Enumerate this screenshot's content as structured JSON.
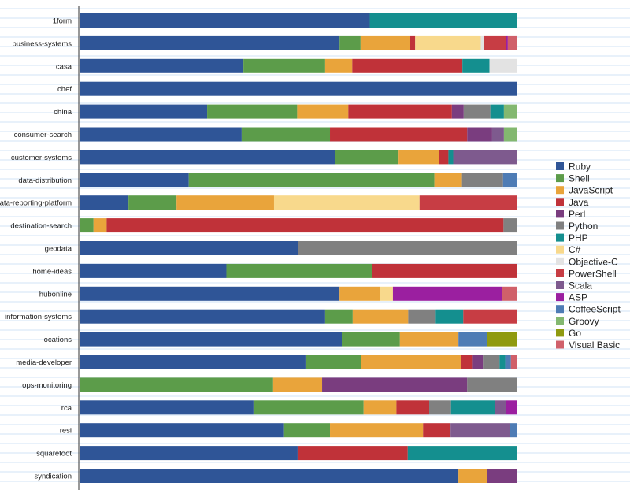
{
  "chart_data": {
    "type": "bar",
    "orientation": "horizontal",
    "stacked": true,
    "normalized": true,
    "title": "",
    "xlabel": "",
    "ylabel": "",
    "xlim": [
      0,
      1
    ],
    "legend_position": "right",
    "categories": [
      "1form",
      "business-systems",
      "casa",
      "chef",
      "china",
      "consumer-search",
      "customer-systems",
      "data-distribution",
      "data-reporting-platform",
      "destination-search",
      "geodata",
      "home-ideas",
      "hubonline",
      "information-systems",
      "locations",
      "media-developer",
      "ops-monitoring",
      "rca",
      "resi",
      "squarefoot",
      "syndication"
    ],
    "series": [
      {
        "name": "Ruby",
        "color": "#2f5597",
        "values": [
          0.664,
          0.595,
          0.375,
          1.0,
          0.292,
          0.371,
          0.584,
          0.25,
          0.112,
          0.0,
          0.5,
          0.336,
          0.595,
          0.562,
          0.6,
          0.517,
          0.0,
          0.398,
          0.468,
          0.499,
          0.867
        ]
      },
      {
        "name": "Shell",
        "color": "#5c9c4a",
        "values": [
          0.0,
          0.048,
          0.187,
          0.0,
          0.206,
          0.202,
          0.146,
          0.562,
          0.11,
          0.032,
          0.0,
          0.333,
          0.0,
          0.063,
          0.133,
          0.128,
          0.443,
          0.252,
          0.105,
          0.0,
          0.0
        ]
      },
      {
        "name": "JavaScript",
        "color": "#e9a43b",
        "values": [
          0.0,
          0.112,
          0.062,
          0.0,
          0.117,
          0.0,
          0.093,
          0.063,
          0.223,
          0.03,
          0.0,
          0.0,
          0.092,
          0.127,
          0.134,
          0.227,
          0.112,
          0.075,
          0.213,
          0.0,
          0.066
        ]
      },
      {
        "name": "Java",
        "color": "#c03239",
        "values": [
          0.0,
          0.013,
          0.252,
          0.0,
          0.237,
          0.314,
          0.021,
          0.0,
          0.0,
          0.908,
          0.0,
          0.331,
          0.0,
          0.0,
          0.0,
          0.026,
          0.0,
          0.075,
          0.063,
          0.252,
          0.0
        ]
      },
      {
        "name": "Perl",
        "color": "#7a3d7f",
        "values": [
          0.0,
          0.0,
          0.0,
          0.0,
          0.027,
          0.057,
          0.0,
          0.0,
          0.0,
          0.0,
          0.0,
          0.0,
          0.0,
          0.0,
          0.0,
          0.025,
          0.332,
          0.0,
          0.0,
          0.0,
          0.067
        ]
      },
      {
        "name": "Python",
        "color": "#808080",
        "values": [
          0.0,
          0.0,
          0.0,
          0.0,
          0.061,
          0.0,
          0.0,
          0.094,
          0.0,
          0.03,
          0.5,
          0.0,
          0.0,
          0.063,
          0.0,
          0.038,
          0.113,
          0.05,
          0.0,
          0.0,
          0.0
        ]
      },
      {
        "name": "PHP",
        "color": "#148f8f",
        "values": [
          0.336,
          0.0,
          0.062,
          0.0,
          0.031,
          0.0,
          0.011,
          0.0,
          0.0,
          0.0,
          0.0,
          0.0,
          0.0,
          0.063,
          0.0,
          0.013,
          0.0,
          0.1,
          0.0,
          0.249,
          0.0
        ]
      },
      {
        "name": "C#",
        "color": "#f8d98c",
        "values": [
          0.0,
          0.15,
          0.0,
          0.0,
          0.0,
          0.0,
          0.0,
          0.0,
          0.333,
          0.0,
          0.0,
          0.0,
          0.03,
          0.0,
          0.0,
          0.0,
          0.0,
          0.0,
          0.0,
          0.0,
          0.0
        ]
      },
      {
        "name": "Objective-C",
        "color": "#e3e3e3",
        "values": [
          0.0,
          0.007,
          0.062,
          0.0,
          0.0,
          0.0,
          0.0,
          0.0,
          0.0,
          0.0,
          0.0,
          0.0,
          0.0,
          0.0,
          0.0,
          0.0,
          0.0,
          0.0,
          0.0,
          0.0,
          0.0
        ]
      },
      {
        "name": "PowerShell",
        "color": "#c73d44",
        "values": [
          0.0,
          0.05,
          0.0,
          0.0,
          0.0,
          0.0,
          0.0,
          0.0,
          0.222,
          0.0,
          0.0,
          0.0,
          0.0,
          0.122,
          0.0,
          0.0,
          0.0,
          0.0,
          0.0,
          0.0,
          0.0
        ]
      },
      {
        "name": "Scala",
        "color": "#7e5a8e",
        "values": [
          0.0,
          0.0,
          0.0,
          0.0,
          0.0,
          0.027,
          0.145,
          0.0,
          0.0,
          0.0,
          0.0,
          0.0,
          0.0,
          0.0,
          0.0,
          0.0,
          0.0,
          0.025,
          0.135,
          0.0,
          0.0
        ]
      },
      {
        "name": "ASP",
        "color": "#9b1fa0",
        "values": [
          0.0,
          0.005,
          0.0,
          0.0,
          0.0,
          0.0,
          0.0,
          0.0,
          0.0,
          0.0,
          0.0,
          0.0,
          0.25,
          0.0,
          0.0,
          0.0,
          0.0,
          0.025,
          0.0,
          0.0,
          0.0
        ]
      },
      {
        "name": "CoffeeScript",
        "color": "#4e7cb5",
        "values": [
          0.0,
          0.0,
          0.0,
          0.0,
          0.0,
          0.0,
          0.0,
          0.031,
          0.0,
          0.0,
          0.0,
          0.0,
          0.0,
          0.0,
          0.066,
          0.013,
          0.0,
          0.0,
          0.016,
          0.0,
          0.0
        ]
      },
      {
        "name": "Groovy",
        "color": "#83b870",
        "values": [
          0.0,
          0.0,
          0.0,
          0.0,
          0.029,
          0.029,
          0.0,
          0.0,
          0.0,
          0.0,
          0.0,
          0.0,
          0.0,
          0.0,
          0.0,
          0.0,
          0.0,
          0.0,
          0.0,
          0.0,
          0.0
        ]
      },
      {
        "name": "Go",
        "color": "#8f9a10",
        "values": [
          0.0,
          0.0,
          0.0,
          0.0,
          0.0,
          0.0,
          0.0,
          0.0,
          0.0,
          0.0,
          0.0,
          0.0,
          0.0,
          0.0,
          0.067,
          0.0,
          0.0,
          0.0,
          0.0,
          0.0,
          0.0
        ]
      },
      {
        "name": "Visual Basic",
        "color": "#d0606a",
        "values": [
          0.0,
          0.02,
          0.0,
          0.0,
          0.0,
          0.0,
          0.0,
          0.0,
          0.0,
          0.0,
          0.0,
          0.0,
          0.033,
          0.0,
          0.0,
          0.013,
          0.0,
          0.0,
          0.0,
          0.0,
          0.0
        ]
      }
    ]
  }
}
